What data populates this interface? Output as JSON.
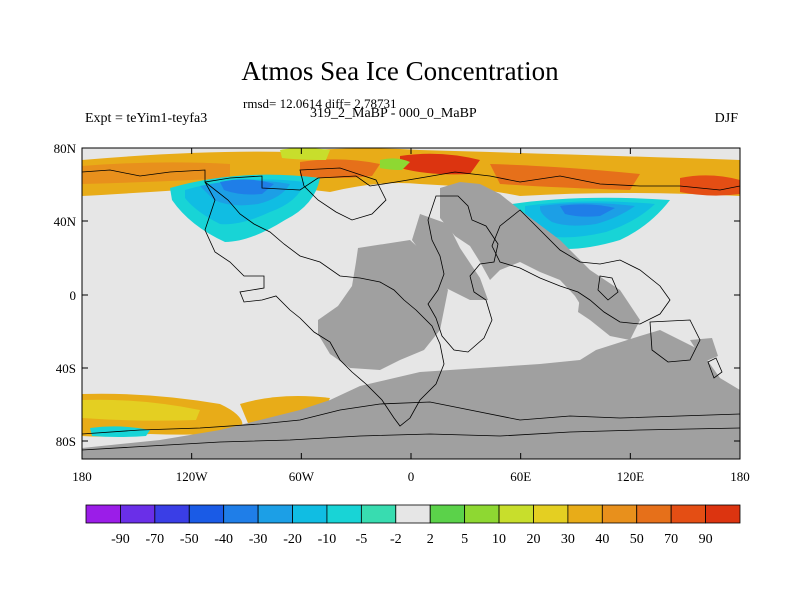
{
  "header": {
    "title": "Atmos Sea Ice Concentration",
    "stats": "rmsd= 12.0614 diff= 2.78731",
    "period": "319_2_MaBP - 000_0_MaBP",
    "experiment": "Expt = teYim1-teyfa3",
    "season": "DJF"
  },
  "map": {
    "lat_ticks": [
      "80N",
      "40N",
      "0",
      "40S",
      "80S"
    ],
    "lon_ticks": [
      "180",
      "120W",
      "60W",
      "0",
      "60E",
      "120E",
      "180"
    ],
    "colors": {
      "ocean_no_change": "#e6e6e6",
      "land": "#a0a0a0",
      "coastline": "#000000"
    }
  },
  "colorbar": {
    "labels": [
      "-90",
      "-70",
      "-50",
      "-40",
      "-30",
      "-20",
      "-10",
      "-5",
      "-2",
      "2",
      "5",
      "10",
      "20",
      "30",
      "40",
      "50",
      "70",
      "90"
    ],
    "colors": [
      "#9b1de8",
      "#6a2fe8",
      "#3a3ee6",
      "#1a5be6",
      "#1f7ee8",
      "#1c9fe6",
      "#10bde3",
      "#18d4d6",
      "#38dcb0",
      "#e6e6e6",
      "#5bd24a",
      "#8ed832",
      "#c8de2c",
      "#e4cf22",
      "#e8ac18",
      "#e8901c",
      "#e6701a",
      "#e44e14",
      "#dc3410"
    ]
  }
}
